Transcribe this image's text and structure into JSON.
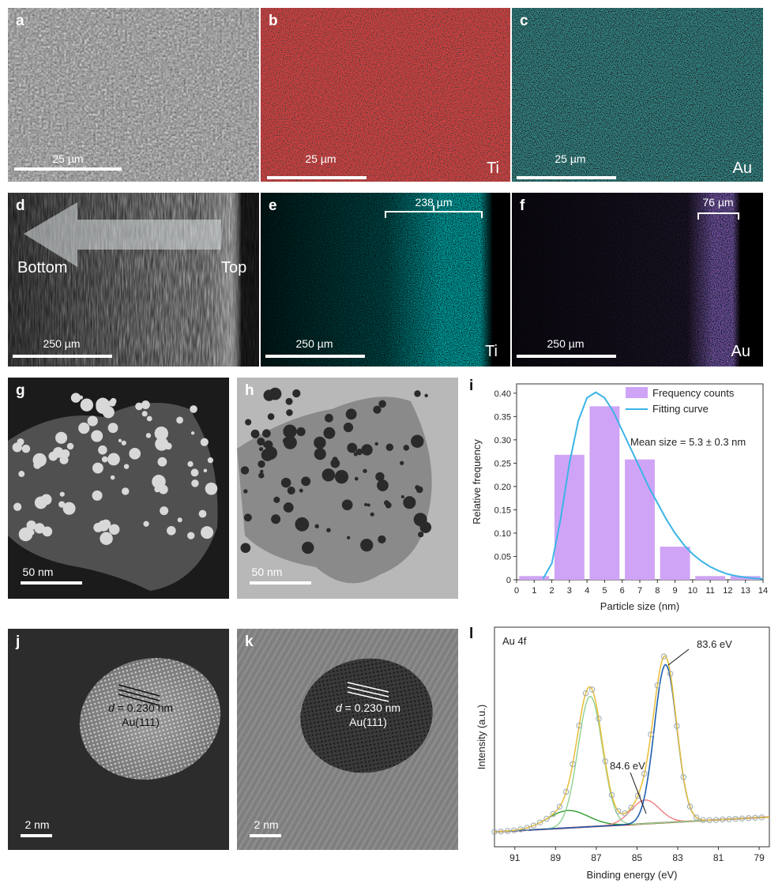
{
  "panels": {
    "a": {
      "label": "a",
      "scale": "25 µm"
    },
    "b": {
      "label": "b",
      "scale": "25 µm",
      "element": "Ti"
    },
    "c": {
      "label": "c",
      "scale": "25 µm",
      "element": "Au"
    },
    "d": {
      "label": "d",
      "scale": "250 µm",
      "left": "Bottom",
      "right": "Top"
    },
    "e": {
      "label": "e",
      "scale": "250 µm",
      "element": "Ti",
      "bracket": "238 µm"
    },
    "f": {
      "label": "f",
      "scale": "250 µm",
      "element": "Au",
      "bracket": "76 µm"
    },
    "g": {
      "label": "g",
      "scale": "50 nm"
    },
    "h": {
      "label": "h",
      "scale": "50 nm"
    },
    "i": {
      "label": "i"
    },
    "j": {
      "label": "j",
      "scale": "2 nm",
      "d_italic": "d",
      "d_value": " = 0.230 nm",
      "plane": "Au(111)"
    },
    "k": {
      "label": "k",
      "scale": "2 nm",
      "d_italic": "d",
      "d_value": " = 0.230 nm",
      "plane": "Au(111)"
    },
    "l": {
      "label": "l"
    }
  },
  "colors": {
    "ti": "#d01818",
    "au": "#30c8d0",
    "violet": "#a040e0",
    "bar": "#cfa4f6",
    "fit": "#3cb4e6"
  },
  "chart_data": [
    {
      "type": "bar",
      "panel": "i",
      "xlabel": "Particle size (nm)",
      "ylabel": "Relative frequency",
      "xlim": [
        0,
        14
      ],
      "ylim": [
        0,
        0.42
      ],
      "xticks": [
        "0",
        "1",
        "2",
        "3",
        "4",
        "5",
        "6",
        "7",
        "8",
        "9",
        "10",
        "11",
        "12",
        "13",
        "14"
      ],
      "yticks": [
        "0",
        "0.05",
        "0.10",
        "0.15",
        "0.20",
        "0.25",
        "0.30",
        "0.35",
        "0.40"
      ],
      "bar_centers": [
        1,
        3,
        5,
        7,
        9,
        11,
        13
      ],
      "values": [
        0.008,
        0.268,
        0.372,
        0.258,
        0.071,
        0.008,
        0.008
      ],
      "fit_x": [
        1.5,
        2,
        2.5,
        3,
        3.5,
        4,
        4.5,
        5,
        5.5,
        6,
        6.5,
        7,
        7.5,
        8,
        8.5,
        9,
        9.5,
        10,
        10.5,
        11,
        11.5,
        12,
        12.5,
        13,
        13.5,
        14
      ],
      "fit_y": [
        0.002,
        0.035,
        0.13,
        0.25,
        0.34,
        0.39,
        0.402,
        0.39,
        0.36,
        0.32,
        0.28,
        0.24,
        0.2,
        0.165,
        0.13,
        0.1,
        0.075,
        0.055,
        0.04,
        0.028,
        0.019,
        0.012,
        0.008,
        0.005,
        0.003,
        0.002
      ],
      "legend": [
        "Frequency counts",
        "Fitting curve"
      ],
      "annotation": "Mean size = 5.3 ± 0.3 nm"
    },
    {
      "type": "line",
      "panel": "l",
      "xlabel": "Binding energy (eV)",
      "ylabel": "Intensity (a.u.)",
      "xlim": [
        92,
        78.5
      ],
      "xticks": [
        "91",
        "89",
        "87",
        "85",
        "83",
        "81",
        "79"
      ],
      "label": "Au 4f",
      "annotations": [
        "83.6 eV",
        "84.6 eV"
      ]
    }
  ]
}
